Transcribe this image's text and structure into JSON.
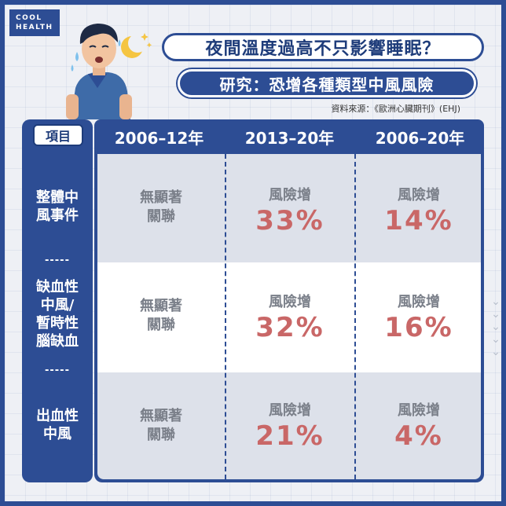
{
  "logo": {
    "line1": "COOL",
    "line2": "HEALTH"
  },
  "title": "夜間溫度過高不只影響睡眠？",
  "subtitle": "研究：恐增各種類型中風風險",
  "source": "資料來源：《歐洲心臟期刊》(EHJ)",
  "table": {
    "corner_label": "項目",
    "separator": "-----",
    "columns": [
      "2006–12年",
      "2013–20年",
      "2006–20年"
    ],
    "rows": [
      {
        "label_lines": [
          "整體中",
          "風事件"
        ],
        "cells": [
          {
            "type": "nosig",
            "lines": [
              "無顯著",
              "關聯"
            ]
          },
          {
            "type": "risk",
            "label": "風險增",
            "value": "33%"
          },
          {
            "type": "risk",
            "label": "風險增",
            "value": "14%"
          }
        ]
      },
      {
        "label_lines": [
          "缺血性",
          "中風/",
          "暫時性",
          "腦缺血"
        ],
        "cells": [
          {
            "type": "nosig",
            "lines": [
              "無顯著",
              "關聯"
            ]
          },
          {
            "type": "risk",
            "label": "風險增",
            "value": "32%"
          },
          {
            "type": "risk",
            "label": "風險增",
            "value": "16%"
          }
        ]
      },
      {
        "label_lines": [
          "出血性",
          "中風"
        ],
        "cells": [
          {
            "type": "nosig",
            "lines": [
              "無顯著",
              "關聯"
            ]
          },
          {
            "type": "risk",
            "label": "風險增",
            "value": "21%"
          },
          {
            "type": "risk",
            "label": "風險增",
            "value": "4%"
          }
        ]
      }
    ]
  },
  "colors": {
    "brand_blue": "#2d4d94",
    "risk_red": "#c96767",
    "muted_gray": "#7a7f89"
  },
  "icons": [
    "sweating-person-icon",
    "moon-stars-icon",
    "chevron-down-icon"
  ]
}
